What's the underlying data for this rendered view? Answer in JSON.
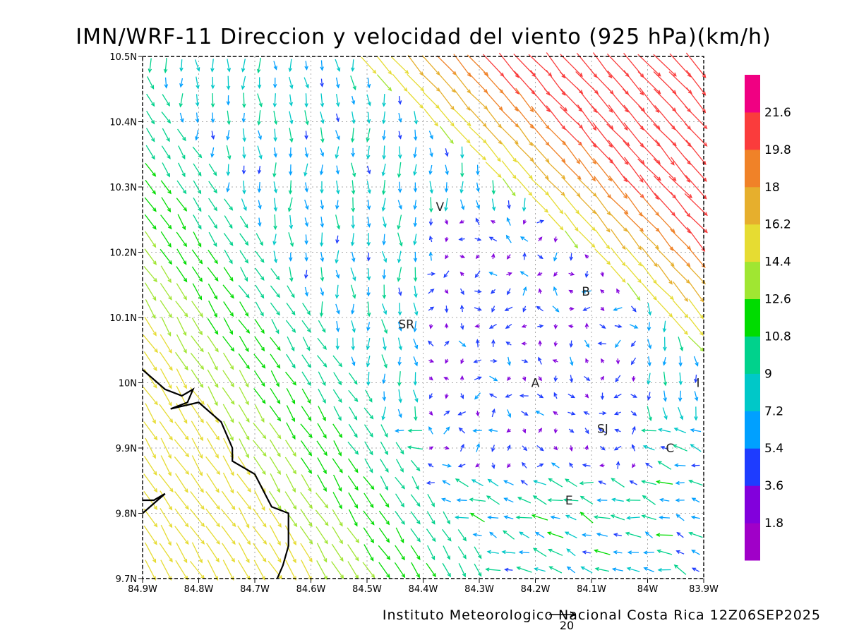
{
  "title": "IMN/WRF-11 Direccion y velocidad del viento (925 hPa)(km/h)",
  "credit": "Instituto Meteorologico Nacional Costa Rica  12Z06SEP2025",
  "reference_vector": {
    "label": "20",
    "speed_kmh": 20
  },
  "map": {
    "lon_range": [
      -84.9,
      -83.9
    ],
    "lat_range": [
      9.7,
      10.5
    ],
    "x_ticks": [
      {
        "value": -84.9,
        "label": "84.9W"
      },
      {
        "value": -84.8,
        "label": "84.8W"
      },
      {
        "value": -84.7,
        "label": "84.7W"
      },
      {
        "value": -84.6,
        "label": "84.6W"
      },
      {
        "value": -84.5,
        "label": "84.5W"
      },
      {
        "value": -84.4,
        "label": "84.4W"
      },
      {
        "value": -84.3,
        "label": "84.3W"
      },
      {
        "value": -84.2,
        "label": "84.2W"
      },
      {
        "value": -84.1,
        "label": "84.1W"
      },
      {
        "value": -84.0,
        "label": "84W"
      },
      {
        "value": -83.9,
        "label": "83.9W"
      }
    ],
    "y_ticks": [
      {
        "value": 9.7,
        "label": "9.7N"
      },
      {
        "value": 9.8,
        "label": "9.8N"
      },
      {
        "value": 9.9,
        "label": "9.9N"
      },
      {
        "value": 10.0,
        "label": "10N"
      },
      {
        "value": 10.1,
        "label": "10.1N"
      },
      {
        "value": 10.2,
        "label": "10.2N"
      },
      {
        "value": 10.3,
        "label": "10.3N"
      },
      {
        "value": 10.4,
        "label": "10.4N"
      },
      {
        "value": 10.5,
        "label": "10.5N"
      }
    ],
    "grid": true,
    "places": [
      {
        "label": "SR",
        "lon": -84.43,
        "lat": 10.09
      },
      {
        "label": "V",
        "lon": -84.37,
        "lat": 10.27
      },
      {
        "label": "B",
        "lon": -84.11,
        "lat": 10.14
      },
      {
        "label": "A",
        "lon": -84.2,
        "lat": 10.0
      },
      {
        "label": "I",
        "lon": -83.91,
        "lat": 10.0
      },
      {
        "label": "SJ",
        "lon": -84.08,
        "lat": 9.93
      },
      {
        "label": "C",
        "lon": -83.96,
        "lat": 9.9
      },
      {
        "label": "E",
        "lon": -84.14,
        "lat": 9.82
      }
    ],
    "coastline": [
      [
        -84.9,
        10.02
      ],
      [
        -84.86,
        9.99
      ],
      [
        -84.83,
        9.98
      ],
      [
        -84.81,
        9.99
      ],
      [
        -84.82,
        9.97
      ],
      [
        -84.85,
        9.96
      ],
      [
        -84.8,
        9.97
      ],
      [
        -84.76,
        9.94
      ],
      [
        -84.74,
        9.9
      ],
      [
        -84.74,
        9.88
      ],
      [
        -84.7,
        9.86
      ],
      [
        -84.67,
        9.81
      ],
      [
        -84.64,
        9.8
      ],
      [
        -84.64,
        9.75
      ],
      [
        -84.65,
        9.72
      ],
      [
        -84.66,
        9.7
      ]
    ],
    "peninsula": [
      [
        -84.9,
        9.82
      ],
      [
        -84.88,
        9.82
      ],
      [
        -84.86,
        9.83
      ],
      [
        -84.9,
        9.8
      ]
    ]
  },
  "colorbar": {
    "colors": [
      "#a000c8",
      "#8200dc",
      "#1e3cff",
      "#00a0ff",
      "#00c8c8",
      "#00d28c",
      "#00dc00",
      "#a0e632",
      "#e6dc32",
      "#e6af2d",
      "#f08228",
      "#fa3c3c",
      "#f00082"
    ],
    "labels": [
      "1.8",
      "3.6",
      "5.4",
      "7.2",
      "9",
      "10.8",
      "12.6",
      "14.4",
      "16.2",
      "18",
      "19.8",
      "21.6"
    ]
  },
  "wind_regions": [
    {
      "name": "northeast-flow",
      "speed_kmh": 17,
      "direction": "NW-to-SE"
    },
    {
      "name": "pacific-flow",
      "speed_kmh": 13,
      "direction": "NW-to-SE"
    },
    {
      "name": "central-valley",
      "speed_kmh": 3,
      "direction": "variable"
    }
  ]
}
